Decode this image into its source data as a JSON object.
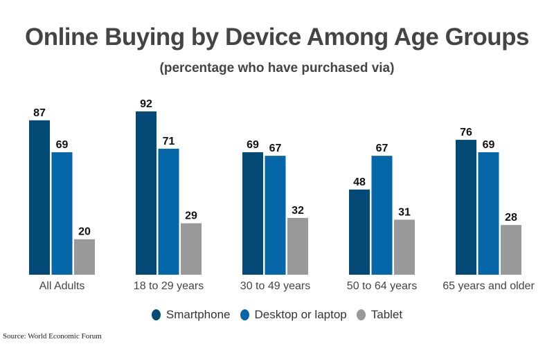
{
  "chart_data": {
    "type": "bar",
    "title": "Online Buying by Device Among Age Groups",
    "subtitle": "(percentage who have purchased via)",
    "xlabel": "",
    "ylabel": "",
    "ylim": [
      0,
      100
    ],
    "grid": false,
    "legend_position": "bottom",
    "categories": [
      "All Adults",
      "18 to 29 years",
      "30 to 49 years",
      "50 to 64 years",
      "65 years and older"
    ],
    "series": [
      {
        "name": "Smartphone",
        "color": "#034a76",
        "values": [
          87,
          92,
          69,
          48,
          76
        ]
      },
      {
        "name": "Desktop or laptop",
        "color": "#0566a8",
        "values": [
          69,
          71,
          67,
          67,
          69
        ]
      },
      {
        "name": "Tablet",
        "color": "#999999",
        "values": [
          20,
          29,
          32,
          31,
          28
        ]
      }
    ],
    "source": "Source: World Economic Forum"
  }
}
